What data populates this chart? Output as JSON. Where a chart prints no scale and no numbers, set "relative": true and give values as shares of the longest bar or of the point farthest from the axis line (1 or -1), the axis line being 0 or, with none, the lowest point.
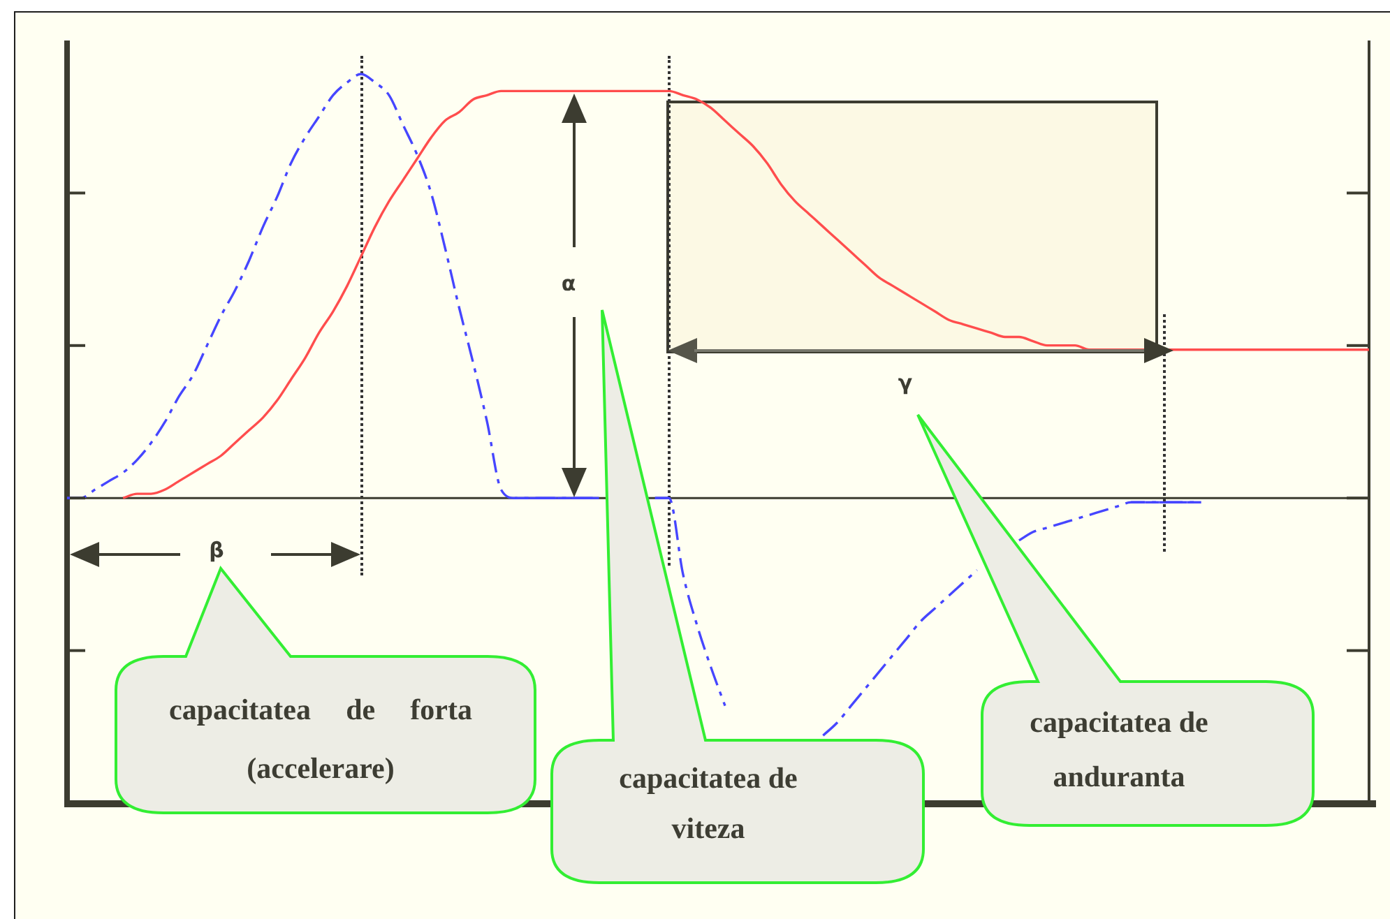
{
  "chart_data": {
    "type": "line",
    "relative": true,
    "categories": [
      null,
      null,
      null,
      null,
      null,
      null,
      null,
      null,
      null,
      null,
      null,
      null,
      null,
      null,
      null,
      null,
      null,
      null,
      null,
      null,
      null,
      null,
      null,
      null,
      null,
      null,
      null,
      null,
      null,
      null,
      null,
      null,
      null,
      null,
      null,
      null,
      null,
      null,
      null,
      null,
      null,
      null,
      null,
      null,
      null,
      null,
      null,
      null,
      null,
      null,
      null,
      null,
      null,
      null,
      null,
      null,
      null,
      null,
      null,
      null,
      null,
      null,
      null,
      null,
      null,
      null,
      null,
      null,
      null,
      null,
      null,
      null,
      null,
      null,
      null,
      null,
      null,
      null,
      null,
      null,
      null,
      null,
      null,
      null,
      null,
      null,
      null,
      null,
      null,
      null,
      null,
      null,
      null,
      null
    ],
    "series": [
      {
        "color": "#ff4d4d",
        "line_style": "solid",
        "values": [
          null,
          null,
          null,
          null,
          0,
          0.01,
          0.01,
          0.02,
          0.04,
          0.06,
          0.08,
          0.1,
          0.13,
          0.16,
          0.19,
          0.23,
          0.28,
          0.33,
          0.39,
          0.44,
          0.5,
          0.57,
          0.64,
          0.7,
          0.75,
          0.8,
          0.85,
          0.89,
          0.91,
          0.94,
          0.95,
          0.96,
          0.96,
          0.96,
          0.96,
          0.96,
          0.96,
          0.96,
          0.96,
          0.96,
          0.96,
          0.96,
          0.96,
          0.96,
          0.95,
          0.94,
          0.92,
          0.89,
          0.86,
          0.83,
          0.79,
          0.74,
          0.7,
          0.67,
          0.64,
          0.61,
          0.58,
          0.55,
          0.52,
          0.5,
          0.48,
          0.46,
          0.44,
          0.42,
          0.41,
          0.4,
          0.39,
          0.38,
          0.38,
          0.37,
          0.36,
          0.36,
          0.36,
          0.35,
          0.35,
          0.35,
          0.35,
          0.35,
          0.35,
          0.35,
          0.35,
          0.35,
          0.35,
          0.35,
          0.35,
          0.35,
          0.35,
          0.35,
          0.35,
          0.35,
          0.35,
          0.35,
          0.35,
          0.35
        ]
      },
      {
        "color": "#4646ff",
        "line_style": "dashed",
        "values": [
          0,
          0,
          0.02,
          0.04,
          0.06,
          0.09,
          0.13,
          0.18,
          0.24,
          0.29,
          0.36,
          0.43,
          0.49,
          0.56,
          0.64,
          0.71,
          0.79,
          0.85,
          0.9,
          0.95,
          0.98,
          1,
          0.98,
          0.95,
          0.88,
          0.81,
          0.72,
          0.59,
          0.45,
          0.32,
          0.18,
          0.02,
          0,
          0,
          0,
          0,
          0,
          0,
          0,
          null,
          null,
          null,
          0,
          0,
          -0.18,
          -0.3,
          -0.4,
          -0.49,
          null,
          null,
          null,
          null,
          null,
          null,
          -0.56,
          -0.53,
          -0.49,
          -0.45,
          -0.41,
          -0.37,
          -0.33,
          -0.29,
          -0.26,
          -0.23,
          -0.2,
          -0.17,
          null,
          null,
          -0.1,
          -0.08,
          -0.07,
          -0.06,
          -0.05,
          -0.04,
          -0.03,
          -0.02,
          -0.01,
          -0.01,
          -0.01,
          -0.01,
          -0.01,
          -0.01,
          null,
          null,
          null,
          null,
          null,
          null,
          null,
          null,
          null,
          null,
          null,
          null
        ]
      }
    ],
    "marker": "none",
    "grid": false,
    "legend": false,
    "annotations": [
      "α",
      "β",
      "γ",
      "capacitatea de forta (accelerare)",
      "capacitatea de viteza",
      "capacitatea de anduranta"
    ]
  }
}
